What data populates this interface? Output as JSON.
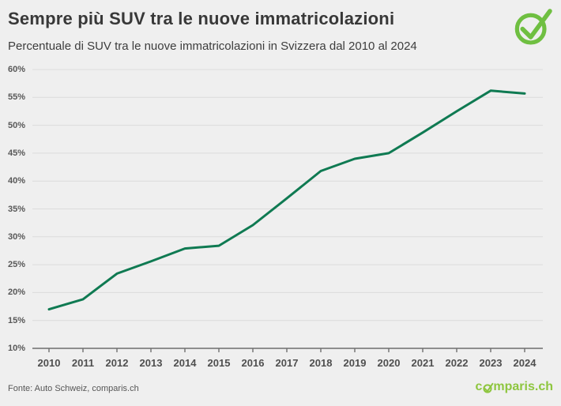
{
  "header": {
    "title": "Sempre più SUV tra le nuove immatricolazioni",
    "subtitle": "Percentuale di SUV tra le nuove immatricolazioni in Svizzera dal 2010 al 2024"
  },
  "chart_data": {
    "type": "line",
    "title": "Sempre più SUV tra le nuove immatricolazioni",
    "subtitle": "Percentuale di SUV tra le nuove immatricolazioni in Svizzera dal 2010 al 2024",
    "categories": [
      "2010",
      "2011",
      "2012",
      "2013",
      "2014",
      "2015",
      "2016",
      "2017",
      "2018",
      "2019",
      "2020",
      "2021",
      "2022",
      "2023",
      "2024"
    ],
    "values": [
      17.0,
      18.8,
      23.4,
      25.6,
      27.9,
      28.4,
      32.1,
      36.9,
      41.8,
      44.0,
      45.0,
      48.7,
      52.5,
      56.2,
      55.7
    ],
    "unit": "%",
    "xlabel": "",
    "ylabel": "",
    "ylim": [
      10,
      60
    ],
    "yticks": [
      10,
      15,
      20,
      25,
      30,
      35,
      40,
      45,
      50,
      55,
      60
    ],
    "grid": true,
    "legend_position": "none",
    "line_color": "#0f7a52"
  },
  "footer": {
    "source": "Fonte: Auto Schweiz, comparis.ch",
    "brand_pre": "c",
    "brand_post": "mparis.ch"
  },
  "colors": {
    "background": "#efefef",
    "line": "#0f7a52",
    "gridline": "#dcdcdc",
    "axis": "#6f6f6f",
    "badge_green": "#6fbf41",
    "brand_green": "#8ec63f",
    "title_text": "#383838",
    "axis_text": "#585858"
  }
}
